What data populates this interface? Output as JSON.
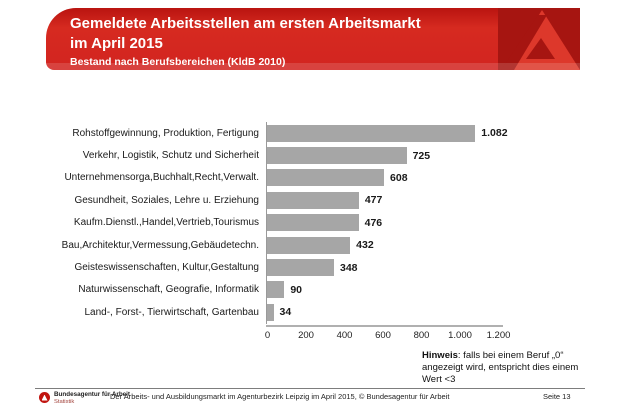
{
  "header": {
    "title_line1": "Gemeldete Arbeitsstellen am ersten Arbeitsmarkt",
    "title_line2": "im April 2015",
    "subtitle": "Bestand nach Berufsbereichen (KldB 2010)"
  },
  "chart_data": {
    "type": "bar",
    "orientation": "horizontal",
    "categories": [
      "Rohstoffgewinnung, Produktion, Fertigung",
      "Verkehr, Logistik, Schutz und Sicherheit",
      "Unternehmensorga,Buchhalt,Recht,Verwalt.",
      "Gesundheit, Soziales, Lehre u. Erziehung",
      "Kaufm.Dienstl.,Handel,Vertrieb,Tourismus",
      "Bau,Architektur,Vermessung,Gebäudetechn.",
      "Geisteswissenschaften, Kultur,Gestaltung",
      "Naturwissenschaft, Geografie, Informatik",
      "Land-, Forst-, Tierwirtschaft, Gartenbau"
    ],
    "values": [
      1082,
      725,
      608,
      477,
      476,
      432,
      348,
      90,
      34
    ],
    "value_labels": [
      "1.082",
      "725",
      "608",
      "477",
      "476",
      "432",
      "348",
      "90",
      "34"
    ],
    "xticks": [
      "0",
      "200",
      "400",
      "600",
      "800",
      "1.000",
      "1.200"
    ],
    "xlim": [
      0,
      1200
    ],
    "bar_color": "#a6a6a6",
    "grid": false,
    "legend": false,
    "title": "Gemeldete Arbeitsstellen am ersten Arbeitsmarkt im April 2015",
    "subtitle": "Bestand nach Berufsbereichen (KldB 2010)"
  },
  "note": {
    "label": "Hinweis",
    "text_after_label": ": falls bei einem Beruf „0“",
    "line2": "angezeigt wird, entspricht dies einem",
    "line3": "Wert <3"
  },
  "footer": {
    "logo_title": "Bundesagentur für Arbeit",
    "logo_subtitle": "Statistik",
    "source": "Der Arbeits- und Ausbildungsmarkt im Agenturbezirk Leipzig im April 2015, © Bundesagentur für Arbeit",
    "page": "Seite 13"
  },
  "colors": {
    "banner_red": "#d22420",
    "banner_dark_red": "#a61511",
    "logo_glyph_red": "#dd382b",
    "bar_gray": "#a6a6a6"
  }
}
